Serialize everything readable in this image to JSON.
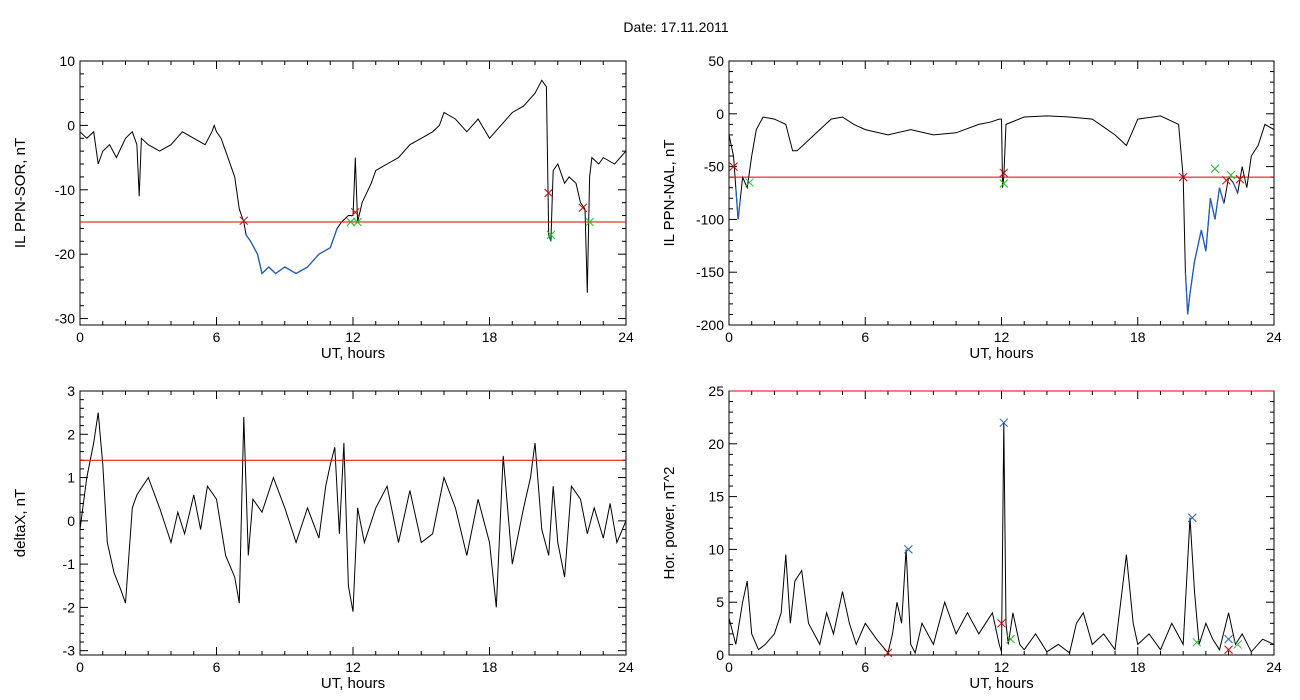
{
  "figure": {
    "title": "Date:  17.11.2011"
  },
  "chart_data": [
    {
      "type": "line",
      "xlabel": "UT, hours",
      "ylabel": "IL PPN-SOR, nT",
      "xlim": [
        0,
        24
      ],
      "ylim": [
        -31,
        10
      ],
      "xticks": [
        0,
        6,
        12,
        18,
        24
      ],
      "yticks": [
        10,
        0,
        -10,
        -20,
        -30
      ],
      "threshold": -15,
      "colors": {
        "series": "#000000",
        "below_threshold": "#1f5fbf",
        "threshold": "#e00000",
        "cross_red": "#d00000",
        "cross_green": "#20c020"
      },
      "series": [
        {
          "x": [
            0,
            0.3,
            0.6,
            0.8,
            1.0,
            1.3,
            1.6,
            2.0,
            2.3,
            2.5,
            2.6,
            2.7,
            3.0,
            3.5,
            4.0,
            4.5,
            5.0,
            5.5,
            5.8,
            5.9,
            6.0,
            6.2,
            6.5,
            6.8,
            7.0,
            7.2,
            7.3,
            7.5,
            7.8,
            8.0,
            8.3,
            8.6,
            9.0,
            9.5,
            10.0,
            10.5,
            11.0,
            11.3,
            11.5,
            11.8,
            12.0,
            12.05,
            12.1,
            12.2,
            12.4,
            12.8,
            13.0,
            13.5,
            14.0,
            14.5,
            15.0,
            15.5,
            15.8,
            16.0,
            16.5,
            17.0,
            17.5,
            18.0,
            18.5,
            19.0,
            19.5,
            20.0,
            20.3,
            20.5,
            20.6,
            20.7,
            20.75,
            20.8,
            21.0,
            21.3,
            21.5,
            21.8,
            22.0,
            22.2,
            22.3,
            22.4,
            22.5,
            22.8,
            23.0,
            23.5,
            24.0
          ],
          "y": [
            -1,
            -2,
            -1,
            -6,
            -4,
            -3,
            -5,
            -2,
            -1,
            -3,
            -11,
            -2,
            -3,
            -4,
            -3,
            -1,
            -2,
            -3,
            -1,
            0,
            -1,
            -2,
            -5,
            -8,
            -13,
            -15,
            -17,
            -18,
            -20,
            -23,
            -22,
            -23,
            -22,
            -23,
            -22,
            -20,
            -19,
            -16,
            -15,
            -14,
            -14,
            -10,
            -5,
            -15,
            -12,
            -9,
            -7,
            -6,
            -5,
            -3,
            -2,
            -1,
            0,
            2,
            1,
            -1,
            1,
            -2,
            0,
            2,
            3,
            5,
            7,
            6,
            -17,
            -18,
            -12,
            -7,
            -6,
            -9,
            -8,
            -9,
            -12,
            -13,
            -26,
            -8,
            -5,
            -6,
            -5,
            -6,
            -4
          ]
        }
      ],
      "markers_red": [
        [
          7.2,
          -14.8
        ],
        [
          12.1,
          -13.5
        ],
        [
          20.6,
          -10.5
        ],
        [
          22.1,
          -12.8
        ]
      ],
      "markers_green": [
        [
          11.9,
          -15
        ],
        [
          12.2,
          -15
        ],
        [
          20.7,
          -17
        ],
        [
          22.4,
          -15
        ]
      ]
    },
    {
      "type": "line",
      "xlabel": "UT, hours",
      "ylabel": "IL PPN-NAL, nT",
      "xlim": [
        0,
        24
      ],
      "ylim": [
        -200,
        50
      ],
      "xticks": [
        0,
        6,
        12,
        18,
        24
      ],
      "yticks": [
        50,
        0,
        -50,
        -100,
        -150,
        -200
      ],
      "threshold": -60,
      "colors": {
        "series": "#000000",
        "below_threshold": "#1f5fbf",
        "threshold": "#e00000",
        "cross_red": "#d00000",
        "cross_green": "#20c020"
      },
      "series": [
        {
          "x": [
            0,
            0.2,
            0.3,
            0.4,
            0.5,
            0.6,
            0.8,
            1.0,
            1.2,
            1.5,
            2.0,
            2.5,
            2.8,
            3.0,
            3.5,
            4.0,
            4.5,
            5.0,
            5.5,
            6.0,
            7.0,
            8.0,
            9.0,
            10.0,
            11.0,
            11.5,
            11.9,
            12.0,
            12.05,
            12.1,
            12.2,
            13.0,
            14.0,
            15.0,
            16.0,
            17.0,
            17.5,
            18.0,
            19.0,
            19.8,
            20.0,
            20.1,
            20.2,
            20.3,
            20.5,
            20.8,
            21.0,
            21.2,
            21.4,
            21.6,
            21.8,
            22.0,
            22.2,
            22.4,
            22.6,
            22.8,
            23.0,
            23.3,
            23.6,
            24.0
          ],
          "y": [
            -20,
            -40,
            -70,
            -100,
            -80,
            -60,
            -70,
            -40,
            -15,
            -3,
            -5,
            -10,
            -35,
            -35,
            -25,
            -15,
            -5,
            -3,
            -10,
            -15,
            -20,
            -15,
            -20,
            -18,
            -10,
            -8,
            -5,
            -5,
            -70,
            -60,
            -10,
            -3,
            -2,
            -3,
            -5,
            -20,
            -30,
            -5,
            -2,
            -10,
            -60,
            -150,
            -190,
            -170,
            -140,
            -110,
            -130,
            -80,
            -100,
            -70,
            -85,
            -60,
            -65,
            -75,
            -50,
            -70,
            -40,
            -30,
            -10,
            -15
          ]
        }
      ],
      "markers_red": [
        [
          0.2,
          -50
        ],
        [
          12.1,
          -56
        ],
        [
          20.0,
          -60
        ],
        [
          21.9,
          -63
        ],
        [
          22.5,
          -62
        ]
      ],
      "markers_green": [
        [
          0.9,
          -65
        ],
        [
          12.1,
          -66
        ],
        [
          21.4,
          -52
        ],
        [
          22.1,
          -58
        ]
      ]
    },
    {
      "type": "line",
      "xlabel": "UT, hours",
      "ylabel": "deltaX, nT",
      "xlim": [
        0,
        24
      ],
      "ylim": [
        -3.1,
        3
      ],
      "xticks": [
        0,
        6,
        12,
        18,
        24
      ],
      "yticks": [
        3,
        2,
        1,
        0,
        -1,
        -2,
        -3
      ],
      "threshold": 1.4,
      "colors": {
        "series": "#000000",
        "threshold": "#e00000"
      },
      "series": [
        {
          "x": [
            0,
            0.3,
            0.6,
            0.8,
            1.0,
            1.2,
            1.5,
            1.8,
            2.0,
            2.3,
            2.5,
            3.0,
            3.5,
            4.0,
            4.3,
            4.6,
            5.0,
            5.3,
            5.6,
            6.0,
            6.4,
            6.8,
            7.0,
            7.2,
            7.4,
            7.6,
            8.0,
            8.5,
            9.0,
            9.5,
            10.0,
            10.5,
            10.8,
            11.0,
            11.2,
            11.4,
            11.6,
            11.8,
            12.0,
            12.2,
            12.5,
            13.0,
            13.5,
            14.0,
            14.5,
            15.0,
            15.5,
            16.0,
            16.5,
            17.0,
            17.5,
            18.0,
            18.3,
            18.6,
            19.0,
            19.5,
            19.8,
            20.0,
            20.3,
            20.6,
            20.8,
            21.0,
            21.3,
            21.6,
            22.0,
            22.3,
            22.6,
            23.0,
            23.3,
            23.6,
            24.0
          ],
          "y": [
            -0.2,
            1.0,
            1.8,
            2.5,
            1.3,
            -0.5,
            -1.2,
            -1.6,
            -1.9,
            0.3,
            0.6,
            1.0,
            0.3,
            -0.5,
            0.2,
            -0.3,
            0.6,
            -0.2,
            0.8,
            0.5,
            -0.8,
            -1.3,
            -1.9,
            2.4,
            -0.8,
            0.5,
            0.2,
            1.0,
            0.3,
            -0.5,
            0.3,
            -0.4,
            0.8,
            1.3,
            1.7,
            -0.3,
            1.8,
            -1.5,
            -2.1,
            0.3,
            -0.5,
            0.3,
            0.8,
            -0.5,
            0.7,
            -0.5,
            -0.3,
            1.0,
            0.3,
            -0.8,
            0.5,
            -0.5,
            -2.0,
            1.5,
            -1.0,
            0.3,
            1.0,
            1.8,
            -0.2,
            -0.8,
            0.8,
            -0.5,
            -1.3,
            0.8,
            0.5,
            -0.3,
            0.3,
            -0.4,
            0.4,
            -0.5,
            0
          ]
        }
      ]
    },
    {
      "type": "line",
      "xlabel": "UT, hours",
      "ylabel": "Hor. power, nT^2",
      "xlim": [
        0,
        24
      ],
      "ylim": [
        0,
        25
      ],
      "xticks": [
        0,
        6,
        12,
        18,
        24
      ],
      "yticks": [
        25,
        20,
        15,
        10,
        5,
        0
      ],
      "threshold": 25,
      "colors": {
        "series": "#000000",
        "threshold": "#e00000",
        "cross_blue": "#1f5fbf",
        "cross_red": "#d00000",
        "cross_green": "#20c020"
      },
      "series": [
        {
          "x": [
            0,
            0.3,
            0.6,
            0.8,
            1.0,
            1.3,
            1.6,
            2.0,
            2.3,
            2.5,
            2.7,
            2.9,
            3.2,
            3.5,
            4.0,
            4.3,
            4.6,
            5.0,
            5.3,
            5.6,
            6.0,
            6.5,
            7.0,
            7.2,
            7.4,
            7.6,
            7.8,
            8.0,
            8.2,
            8.5,
            9.0,
            9.5,
            10.0,
            10.5,
            11.0,
            11.3,
            11.6,
            11.9,
            12.0,
            12.1,
            12.2,
            12.3,
            12.5,
            12.8,
            13.0,
            13.5,
            14.0,
            14.5,
            15.0,
            15.3,
            15.6,
            16.0,
            16.5,
            17.0,
            17.5,
            17.8,
            18.0,
            18.5,
            19.0,
            19.5,
            20.0,
            20.3,
            20.5,
            20.7,
            21.0,
            21.3,
            21.6,
            22.0,
            22.3,
            22.6,
            23.0,
            23.5,
            24.0
          ],
          "y": [
            3.5,
            1,
            5,
            7,
            2,
            0.5,
            1,
            2,
            4,
            9.5,
            3,
            7,
            8,
            3,
            1,
            4,
            2,
            6,
            3,
            1,
            3,
            1.5,
            0.2,
            2,
            5,
            3,
            10,
            1,
            0.2,
            3,
            1,
            5,
            2,
            4,
            2,
            3,
            4,
            1,
            0.3,
            22,
            3,
            1,
            4,
            1,
            0.5,
            2,
            0.3,
            1,
            0.2,
            3,
            4,
            1,
            2,
            0.5,
            9.5,
            3,
            1,
            2,
            0.5,
            3,
            1,
            13,
            6,
            1,
            3,
            1.5,
            0.5,
            4,
            1,
            2,
            0.3,
            1.5,
            1
          ]
        }
      ],
      "markers_blue": [
        [
          7.9,
          10
        ],
        [
          12.1,
          22
        ],
        [
          20.4,
          13
        ],
        [
          22.0,
          1.5
        ]
      ],
      "markers_red": [
        [
          7.0,
          0.2
        ],
        [
          12.0,
          3
        ],
        [
          22.0,
          0.5
        ]
      ],
      "markers_green": [
        [
          12.4,
          1.5
        ],
        [
          20.6,
          1.2
        ],
        [
          22.4,
          1
        ]
      ]
    }
  ]
}
